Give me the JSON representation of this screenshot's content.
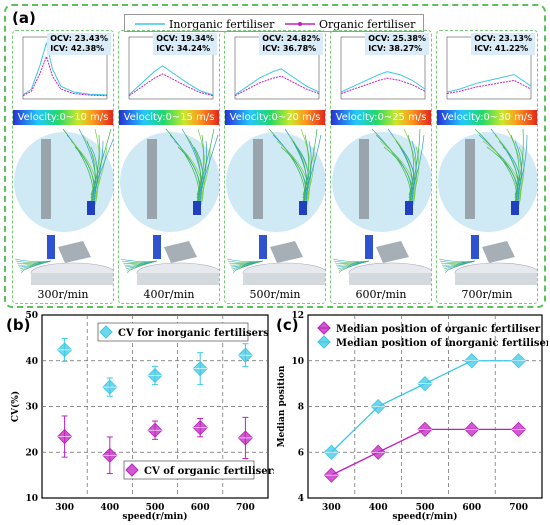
{
  "panel_a": {
    "label": "(a)",
    "legend": [
      "Inorganic fertiliser",
      "Organic fertiliser"
    ],
    "columns": [
      {
        "ocv": "OCV: 23.43%",
        "icv": "ICV: 42.38%",
        "velocity": "Velocity:0~10 m/s",
        "speed": "300r/min"
      },
      {
        "ocv": "OCV: 19.34%",
        "icv": "ICV: 34.24%",
        "velocity": "Velocity:0~15 m/s",
        "speed": "400r/min"
      },
      {
        "ocv": "OCV: 24.82%",
        "icv": "ICV: 36.78%",
        "velocity": "Velocity:0~20 m/s",
        "speed": "500r/min"
      },
      {
        "ocv": "OCV: 25.38%",
        "icv": "ICV: 38.27%",
        "velocity": "Velocity:0~25 m/s",
        "speed": "600r/min"
      },
      {
        "ocv": "OCV: 23.13%",
        "icv": "ICV: 41.22%",
        "velocity": "Velocity:0~30 m/s",
        "speed": "700r/min"
      }
    ],
    "colors": {
      "inorganic": "#3cc8e6",
      "organic": "#c020c0"
    }
  },
  "chart_data": [
    {
      "type": "scatter",
      "label": "(b)",
      "xlabel": "speed(r/min)",
      "ylabel": "CV(%)",
      "x": [
        300,
        400,
        500,
        600,
        700
      ],
      "xlim": [
        250,
        750
      ],
      "ylim": [
        10,
        50
      ],
      "yticks": [
        10,
        20,
        30,
        40,
        50
      ],
      "grid": true,
      "series": [
        {
          "name": "CV for inorganic fertilisers",
          "values": [
            42.38,
            34.24,
            36.78,
            38.27,
            41.22
          ],
          "err": [
            2.5,
            2.0,
            2.0,
            3.5,
            2.5
          ],
          "color": "#3cc8e6"
        },
        {
          "name": "CV of organic fertilisers",
          "values": [
            23.43,
            19.34,
            24.82,
            25.38,
            23.13
          ],
          "err": [
            4.5,
            4.0,
            2.0,
            2.0,
            4.5
          ],
          "color": "#c020c0"
        }
      ]
    },
    {
      "type": "line",
      "label": "(c)",
      "xlabel": "speed(r/min)",
      "ylabel": "Median position",
      "x": [
        300,
        400,
        500,
        600,
        700
      ],
      "xlim": [
        250,
        750
      ],
      "ylim": [
        4,
        12
      ],
      "yticks": [
        4,
        6,
        8,
        10,
        12
      ],
      "grid": true,
      "series": [
        {
          "name": "Median position of organic fertiliser",
          "values": [
            5,
            6,
            7,
            7,
            7
          ],
          "color": "#c020c0"
        },
        {
          "name": "Median position of inorganic fertiliser",
          "values": [
            6,
            8,
            9,
            10,
            10
          ],
          "color": "#3cc8e6"
        }
      ]
    }
  ]
}
